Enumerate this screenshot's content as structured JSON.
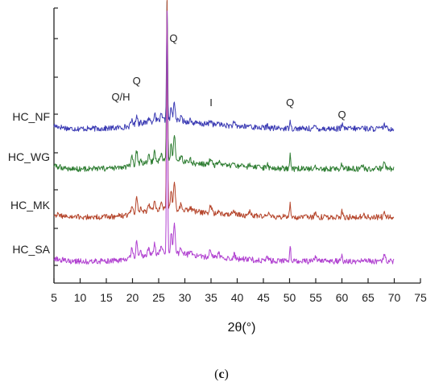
{
  "chart_data": {
    "type": "line",
    "xlabel": "2θ(°)",
    "x_ticks": [
      5,
      10,
      15,
      20,
      25,
      30,
      35,
      40,
      45,
      50,
      55,
      60,
      65,
      70,
      75
    ],
    "xlim": [
      5,
      75
    ],
    "y_ticks_shown": false,
    "grid": false,
    "legend": "none",
    "series": [
      {
        "name": "HC_NF",
        "color": "#3c3cb4"
      },
      {
        "name": "HC_WG",
        "color": "#2e7d32"
      },
      {
        "name": "HC_MK",
        "color": "#b5452b"
      },
      {
        "name": "HC_SA",
        "color": "#b040d0"
      }
    ],
    "annotations": [
      {
        "text": "Q/H",
        "x": 19.0
      },
      {
        "text": "Q",
        "x": 20.8
      },
      {
        "text": "Q",
        "x": 26.6
      },
      {
        "text": "I",
        "x": 35.0
      },
      {
        "text": "Q",
        "x": 50.1
      },
      {
        "text": "Q",
        "x": 60.0
      }
    ]
  },
  "panel_label": {
    "open": "(",
    "letter": "c",
    "close": ")"
  }
}
